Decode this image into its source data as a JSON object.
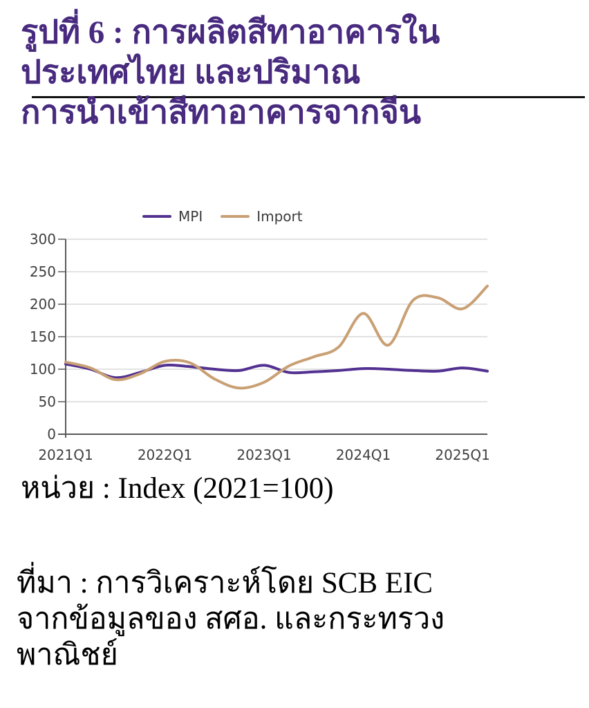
{
  "title": {
    "lines": [
      "รูปที่ 6 : การผลิตสีทาอาคารใน",
      "ประเทศไทย และปริมาณ",
      "การนำเข้าสีทาอาคารจากจีน"
    ],
    "color": "#482a7f"
  },
  "unit_label": "หน่วย : Index (2021=100)",
  "source": {
    "lines": [
      "ที่มา : การวิเคราะห์โดย SCB EIC",
      "จากข้อมูลของ สศอ. และกระทรวง",
      "พาณิชย์"
    ]
  },
  "colors": {
    "title": "#482a7f",
    "mpi": "#533191",
    "import": "#c9a074",
    "grid": "#d9d9d9",
    "axis": "#595959",
    "tick_text": "#3f3f3f",
    "legend_text": "#3a3a3a",
    "divider": "#111111",
    "body_text": "#000000",
    "background": "#ffffff"
  },
  "chart_data": {
    "type": "line",
    "title": "",
    "unit": "Index (2021=100)",
    "x": [
      "2021Q1",
      "2021Q2",
      "2021Q3",
      "2021Q4",
      "2022Q1",
      "2022Q2",
      "2022Q3",
      "2022Q4",
      "2023Q1",
      "2023Q2",
      "2023Q3",
      "2023Q4",
      "2024Q1",
      "2024Q2",
      "2024Q3",
      "2024Q4",
      "2025Q1",
      "2025Q2"
    ],
    "x_tick_labels": [
      "2021Q1",
      "2022Q1",
      "2023Q1",
      "2024Q1",
      "2025Q1"
    ],
    "x_tick_positions": [
      0,
      4,
      8,
      12,
      16
    ],
    "series": [
      {
        "name": "MPI",
        "color": "#533191",
        "values": [
          108,
          100,
          87,
          95,
          106,
          104,
          100,
          98,
          106,
          95,
          96,
          98,
          101,
          100,
          98,
          97,
          102,
          97
        ]
      },
      {
        "name": "Import",
        "color": "#c9a074",
        "values": [
          111,
          102,
          84,
          93,
          112,
          110,
          85,
          71,
          80,
          105,
          119,
          134,
          186,
          137,
          206,
          210,
          193,
          228
        ]
      }
    ],
    "ylim": [
      0,
      300
    ],
    "yticks": [
      0,
      50,
      100,
      150,
      200,
      250,
      300
    ],
    "grid": "horizontal",
    "legend_position": "top"
  }
}
